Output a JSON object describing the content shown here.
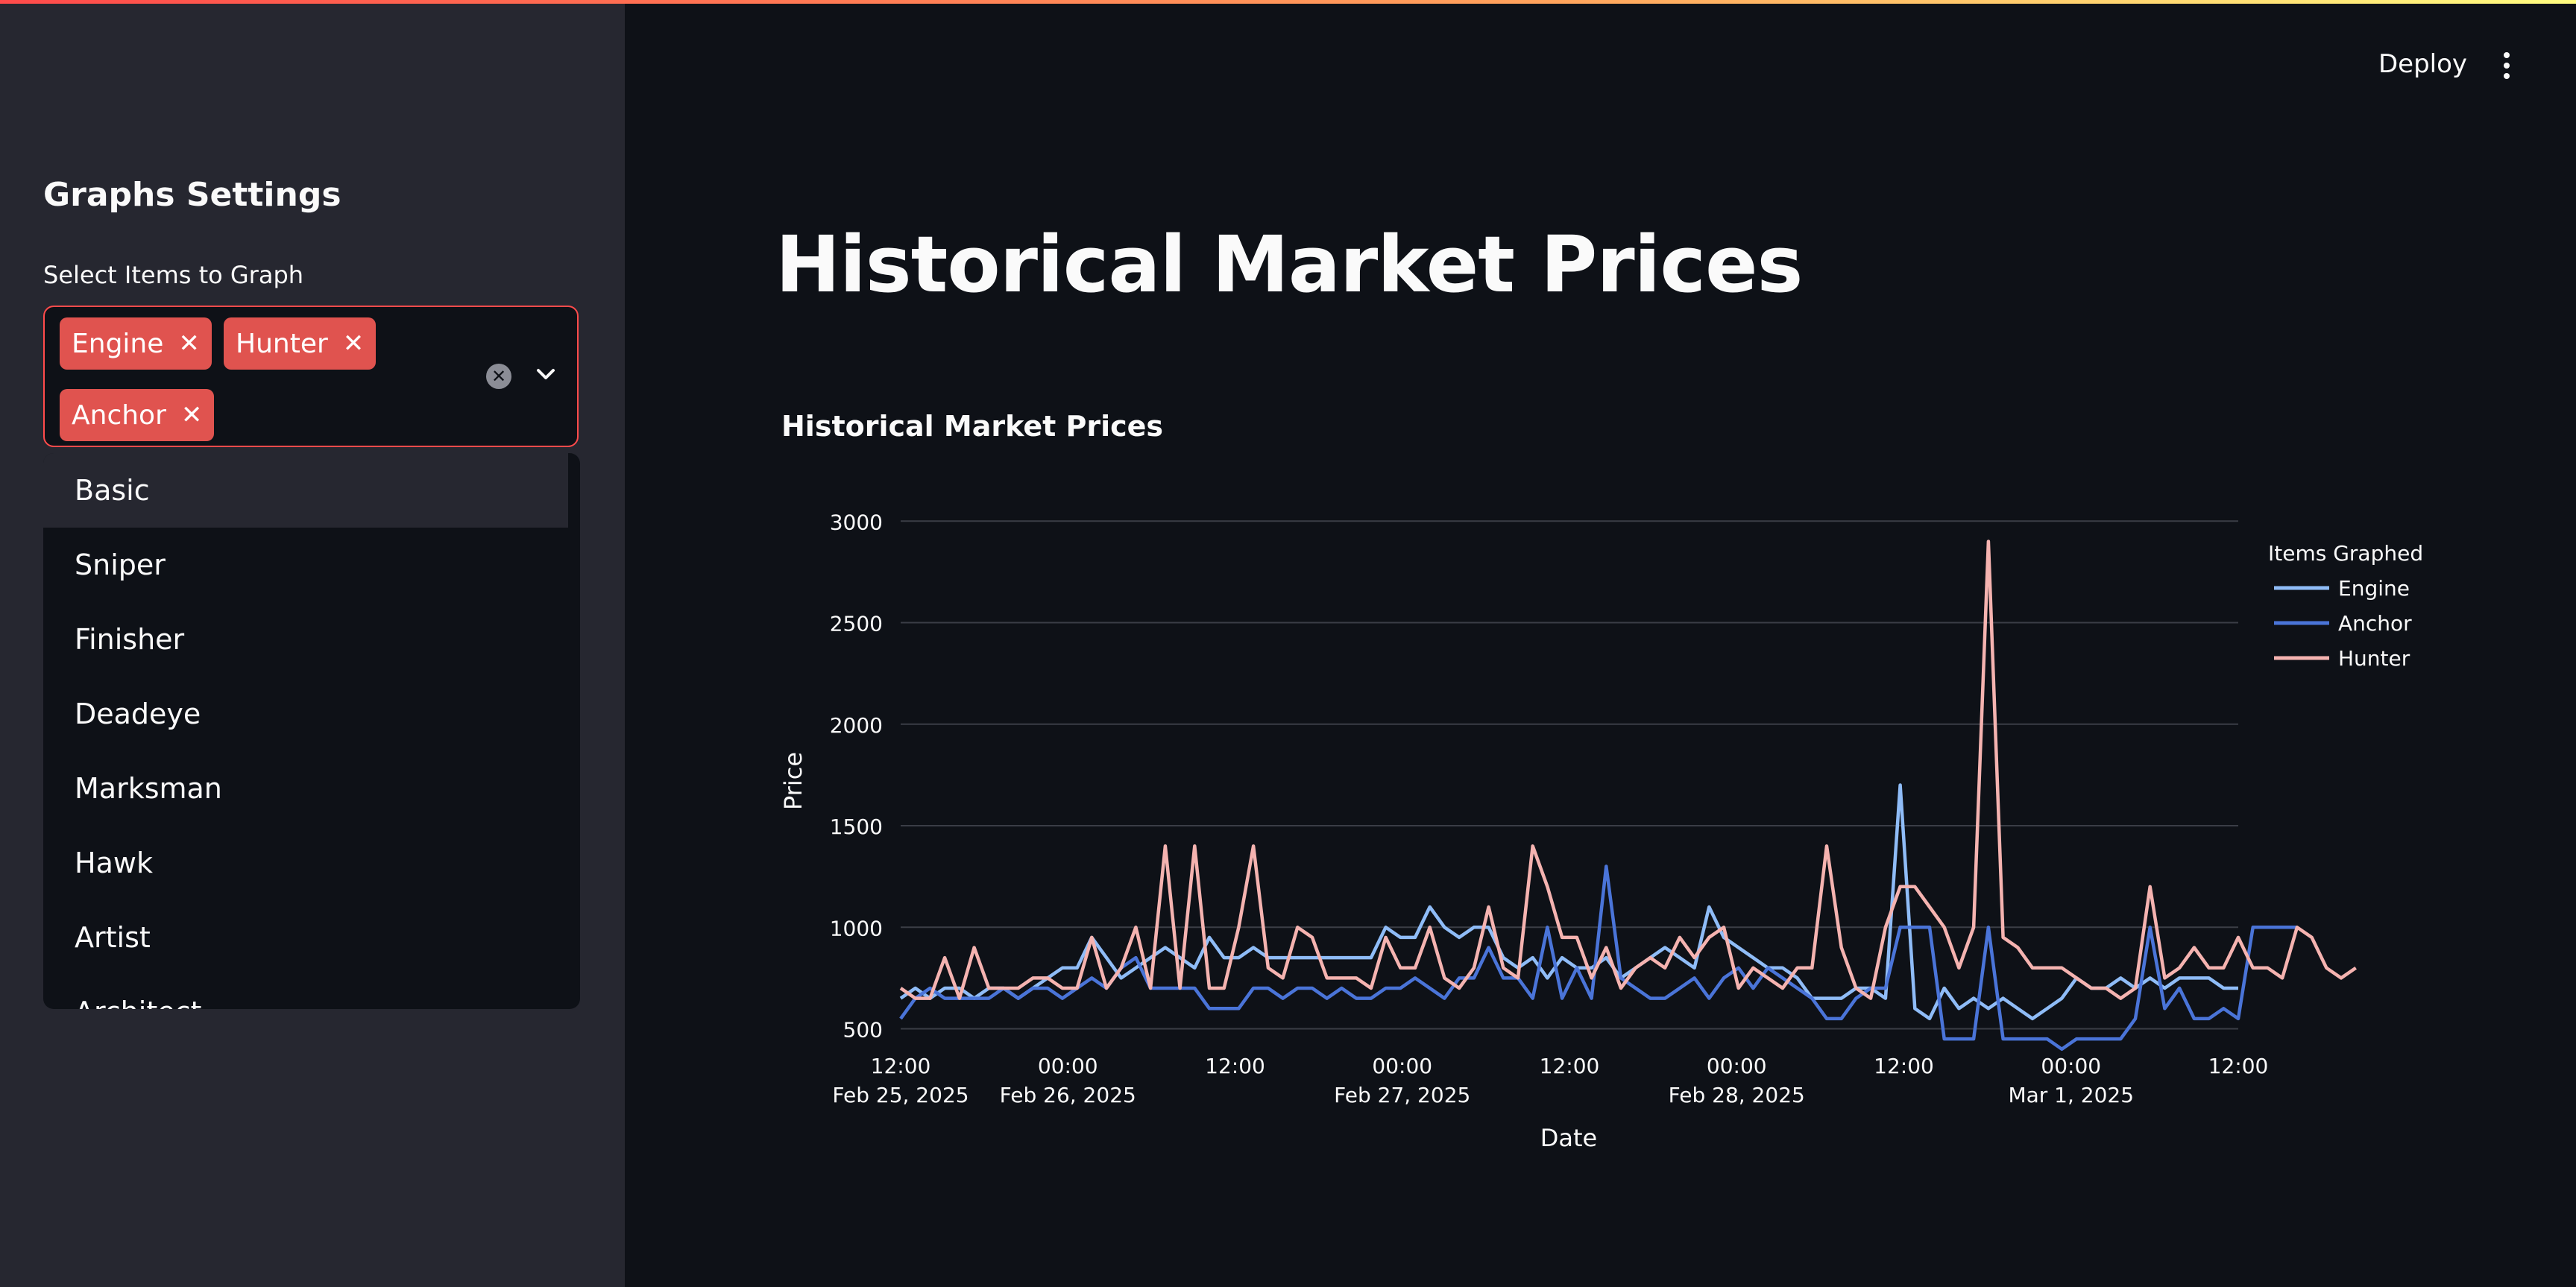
{
  "header": {
    "deploy_label": "Deploy"
  },
  "sidebar": {
    "title": "Graphs Settings",
    "select_label": "Select Items to Graph",
    "selected": [
      "Engine",
      "Hunter",
      "Anchor"
    ],
    "options": [
      "Basic",
      "Sniper",
      "Finisher",
      "Deadeye",
      "Marksman",
      "Hawk",
      "Artist",
      "Architect"
    ]
  },
  "main": {
    "title": "Historical Market Prices"
  },
  "chart_data": {
    "type": "line",
    "title": "Historical Market Prices",
    "xlabel": "Date",
    "ylabel": "Price",
    "ylim": [
      300,
      3100
    ],
    "yticks": [
      500,
      1000,
      1500,
      2000,
      2500,
      3000
    ],
    "x_start": "Feb 25, 2025 12:00",
    "x_step_hours": 3,
    "xticks": [
      {
        "time": "12:00",
        "date": "Feb 25, 2025"
      },
      {
        "time": "00:00",
        "date": "Feb 26, 2025"
      },
      {
        "time": "12:00",
        "date": ""
      },
      {
        "time": "00:00",
        "date": "Feb 27, 2025"
      },
      {
        "time": "12:00",
        "date": ""
      },
      {
        "time": "00:00",
        "date": "Feb 28, 2025"
      },
      {
        "time": "12:00",
        "date": ""
      },
      {
        "time": "00:00",
        "date": "Mar 1, 2025"
      },
      {
        "time": "12:00",
        "date": ""
      }
    ],
    "grid": true,
    "legend": {
      "title": "Items Graphed",
      "position": "right"
    },
    "series": [
      {
        "name": "Engine",
        "color": "#8fbcf7",
        "values": [
          650,
          700,
          650,
          700,
          700,
          650,
          700,
          700,
          650,
          700,
          750,
          800,
          800,
          950,
          850,
          750,
          800,
          850,
          900,
          850,
          800,
          950,
          850,
          850,
          900,
          850,
          850,
          850,
          850,
          850,
          850,
          850,
          850,
          1000,
          950,
          950,
          1100,
          1000,
          950,
          1000,
          1000,
          850,
          800,
          850,
          750,
          850,
          800,
          800,
          850,
          750,
          800,
          850,
          900,
          850,
          800,
          1100,
          950,
          900,
          850,
          800,
          800,
          750,
          650,
          650,
          650,
          700,
          700,
          650,
          1700,
          600,
          550,
          700,
          600,
          650,
          600,
          650,
          600,
          550,
          600,
          650,
          750,
          700,
          700,
          750,
          700,
          750,
          700,
          750,
          750,
          750,
          700,
          700
        ]
      },
      {
        "name": "Anchor",
        "color": "#4a74d8",
        "values": [
          550,
          650,
          700,
          650,
          650,
          650,
          650,
          700,
          650,
          700,
          700,
          650,
          700,
          750,
          700,
          800,
          850,
          700,
          700,
          700,
          700,
          600,
          600,
          600,
          700,
          700,
          650,
          700,
          700,
          650,
          700,
          650,
          650,
          700,
          700,
          750,
          700,
          650,
          750,
          750,
          900,
          750,
          750,
          650,
          1000,
          650,
          800,
          650,
          1300,
          750,
          700,
          650,
          650,
          700,
          750,
          650,
          750,
          800,
          700,
          800,
          750,
          700,
          650,
          550,
          550,
          650,
          700,
          700,
          1000,
          1000,
          1000,
          450,
          450,
          450,
          1000,
          450,
          450,
          450,
          450,
          400,
          450,
          450,
          450,
          450,
          550,
          1000,
          600,
          700,
          550,
          550,
          600,
          550,
          1000,
          1000,
          1000,
          1000
        ]
      },
      {
        "name": "Hunter",
        "color": "#f5b3b0",
        "values": [
          700,
          650,
          650,
          850,
          650,
          900,
          700,
          700,
          700,
          750,
          750,
          700,
          700,
          950,
          700,
          800,
          1000,
          700,
          1400,
          700,
          1400,
          700,
          700,
          1000,
          1400,
          800,
          750,
          1000,
          950,
          750,
          750,
          750,
          700,
          950,
          800,
          800,
          1000,
          750,
          700,
          800,
          1100,
          800,
          750,
          1400,
          1200,
          950,
          950,
          750,
          900,
          700,
          800,
          850,
          800,
          950,
          850,
          950,
          1000,
          700,
          800,
          750,
          700,
          800,
          800,
          1400,
          900,
          700,
          650,
          1000,
          1200,
          1200,
          1100,
          1000,
          800,
          1000,
          2900,
          950,
          900,
          800,
          800,
          800,
          750,
          700,
          700,
          650,
          700,
          1200,
          750,
          800,
          900,
          800,
          800,
          950,
          800,
          800,
          750,
          1000,
          950,
          800,
          750,
          800
        ]
      }
    ]
  }
}
